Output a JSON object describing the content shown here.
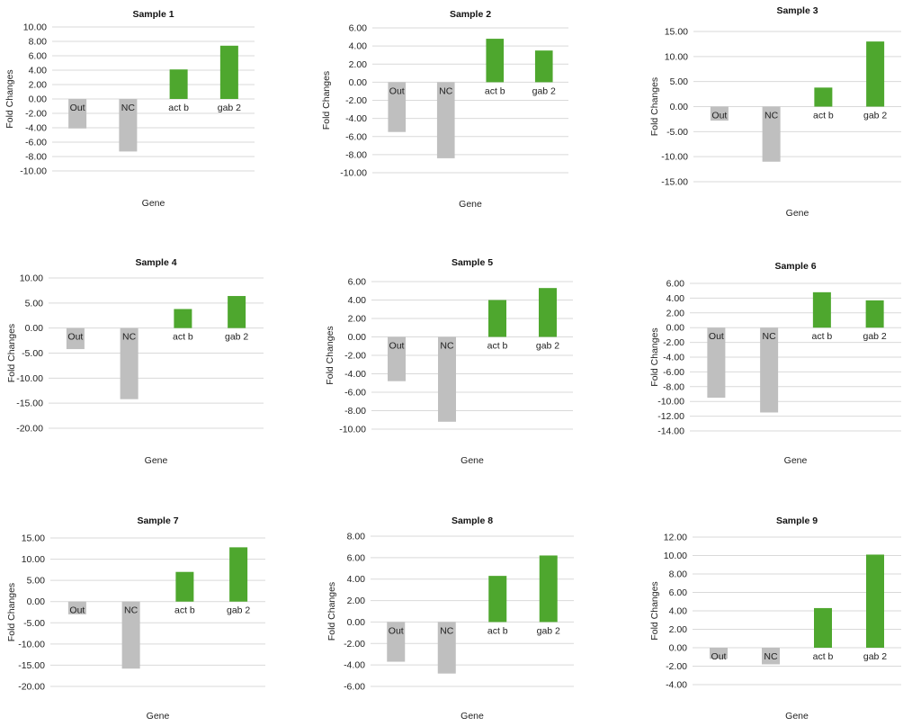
{
  "chart_data": [
    {
      "type": "bar",
      "title": "Sample 1",
      "xlabel": "Gene",
      "ylabel": "Fold Changes",
      "categories": [
        "Out",
        "NC",
        "act b",
        "gab 2"
      ],
      "values": [
        -4.1,
        -7.3,
        4.1,
        7.4
      ],
      "bar_colors": [
        "#bfbfbf",
        "#bfbfbf",
        "#4ea72e",
        "#4ea72e"
      ],
      "ylim": [
        -10,
        10
      ],
      "yticks": [
        "10.00",
        "8.00",
        "6.00",
        "4.00",
        "2.00",
        "0.00",
        "-2.00",
        "-4.00",
        "-6.00",
        "-8.00",
        "-10.00"
      ],
      "grid": true,
      "legend": "none"
    },
    {
      "type": "bar",
      "title": "Sample 2",
      "xlabel": "Gene",
      "ylabel": "Fold Changes",
      "categories": [
        "Out",
        "NC",
        "act b",
        "gab 2"
      ],
      "values": [
        -5.5,
        -8.4,
        4.8,
        3.5
      ],
      "bar_colors": [
        "#bfbfbf",
        "#bfbfbf",
        "#4ea72e",
        "#4ea72e"
      ],
      "ylim": [
        -10,
        6
      ],
      "yticks": [
        "6.00",
        "4.00",
        "2.00",
        "0.00",
        "-2.00",
        "-4.00",
        "-6.00",
        "-8.00",
        "-10.00"
      ],
      "grid": true,
      "legend": "none"
    },
    {
      "type": "bar",
      "title": "Sample 3",
      "xlabel": "Gene",
      "ylabel": "Fold Changes",
      "categories": [
        "Out",
        "NC",
        "act b",
        "gab 2"
      ],
      "values": [
        -2.8,
        -11.0,
        3.8,
        13.0
      ],
      "bar_colors": [
        "#bfbfbf",
        "#bfbfbf",
        "#4ea72e",
        "#4ea72e"
      ],
      "ylim": [
        -15,
        15
      ],
      "yticks": [
        "15.00",
        "10.00",
        "5.00",
        "0.00",
        "-5.00",
        "-10.00",
        "-15.00"
      ],
      "grid": true,
      "legend": "none"
    },
    {
      "type": "bar",
      "title": "Sample 4",
      "xlabel": "Gene",
      "ylabel": "Fold Changes",
      "categories": [
        "Out",
        "NC",
        "act b",
        "gab 2"
      ],
      "values": [
        -4.2,
        -14.2,
        3.8,
        6.4
      ],
      "bar_colors": [
        "#bfbfbf",
        "#bfbfbf",
        "#4ea72e",
        "#4ea72e"
      ],
      "ylim": [
        -20,
        10
      ],
      "yticks": [
        "10.00",
        "5.00",
        "0.00",
        "-5.00",
        "-10.00",
        "-15.00",
        "-20.00"
      ],
      "grid": true,
      "legend": "none"
    },
    {
      "type": "bar",
      "title": "Sample 5",
      "xlabel": "Gene",
      "ylabel": "Fold Changes",
      "categories": [
        "Out",
        "NC",
        "act b",
        "gab 2"
      ],
      "values": [
        -4.8,
        -9.2,
        4.0,
        5.3
      ],
      "bar_colors": [
        "#bfbfbf",
        "#bfbfbf",
        "#4ea72e",
        "#4ea72e"
      ],
      "ylim": [
        -10,
        6
      ],
      "yticks": [
        "6.00",
        "4.00",
        "2.00",
        "0.00",
        "-2.00",
        "-4.00",
        "-6.00",
        "-8.00",
        "-10.00"
      ],
      "grid": true,
      "legend": "none"
    },
    {
      "type": "bar",
      "title": "Sample 6",
      "xlabel": "Gene",
      "ylabel": "Fold Changes",
      "categories": [
        "Out",
        "NC",
        "act b",
        "gab 2"
      ],
      "values": [
        -9.5,
        -11.5,
        4.8,
        3.7
      ],
      "bar_colors": [
        "#bfbfbf",
        "#bfbfbf",
        "#4ea72e",
        "#4ea72e"
      ],
      "ylim": [
        -14,
        6
      ],
      "yticks": [
        "6.00",
        "4.00",
        "2.00",
        "0.00",
        "-2.00",
        "-4.00",
        "-6.00",
        "-8.00",
        "-10.00",
        "-12.00",
        "-14.00"
      ],
      "grid": true,
      "legend": "none"
    },
    {
      "type": "bar",
      "title": "Sample 7",
      "xlabel": "Gene",
      "ylabel": "Fold Changes",
      "categories": [
        "Out",
        "NC",
        "act b",
        "gab 2"
      ],
      "values": [
        -3.0,
        -15.8,
        7.0,
        12.8
      ],
      "bar_colors": [
        "#bfbfbf",
        "#bfbfbf",
        "#4ea72e",
        "#4ea72e"
      ],
      "ylim": [
        -20,
        15
      ],
      "yticks": [
        "15.00",
        "10.00",
        "5.00",
        "0.00",
        "-5.00",
        "-10.00",
        "-15.00",
        "-20.00"
      ],
      "grid": true,
      "legend": "none"
    },
    {
      "type": "bar",
      "title": "Sample 8",
      "xlabel": "Gene",
      "ylabel": "Fold Changes",
      "categories": [
        "Out",
        "NC",
        "act b",
        "gab 2"
      ],
      "values": [
        -3.7,
        -4.8,
        4.3,
        6.2
      ],
      "bar_colors": [
        "#bfbfbf",
        "#bfbfbf",
        "#4ea72e",
        "#4ea72e"
      ],
      "ylim": [
        -6,
        8
      ],
      "yticks": [
        "8.00",
        "6.00",
        "4.00",
        "2.00",
        "0.00",
        "-2.00",
        "-4.00",
        "-6.00"
      ],
      "grid": true,
      "legend": "none"
    },
    {
      "type": "bar",
      "title": "Sample 9",
      "xlabel": "Gene",
      "ylabel": "Fold Changes",
      "categories": [
        "Out",
        "NC",
        "act b",
        "gab 2"
      ],
      "values": [
        -1.2,
        -1.8,
        4.3,
        10.1
      ],
      "bar_colors": [
        "#bfbfbf",
        "#bfbfbf",
        "#4ea72e",
        "#4ea72e"
      ],
      "ylim": [
        -4,
        12
      ],
      "yticks": [
        "12.00",
        "10.00",
        "8.00",
        "6.00",
        "4.00",
        "2.00",
        "0.00",
        "-2.00",
        "-4.00"
      ],
      "grid": true,
      "legend": "none"
    }
  ]
}
